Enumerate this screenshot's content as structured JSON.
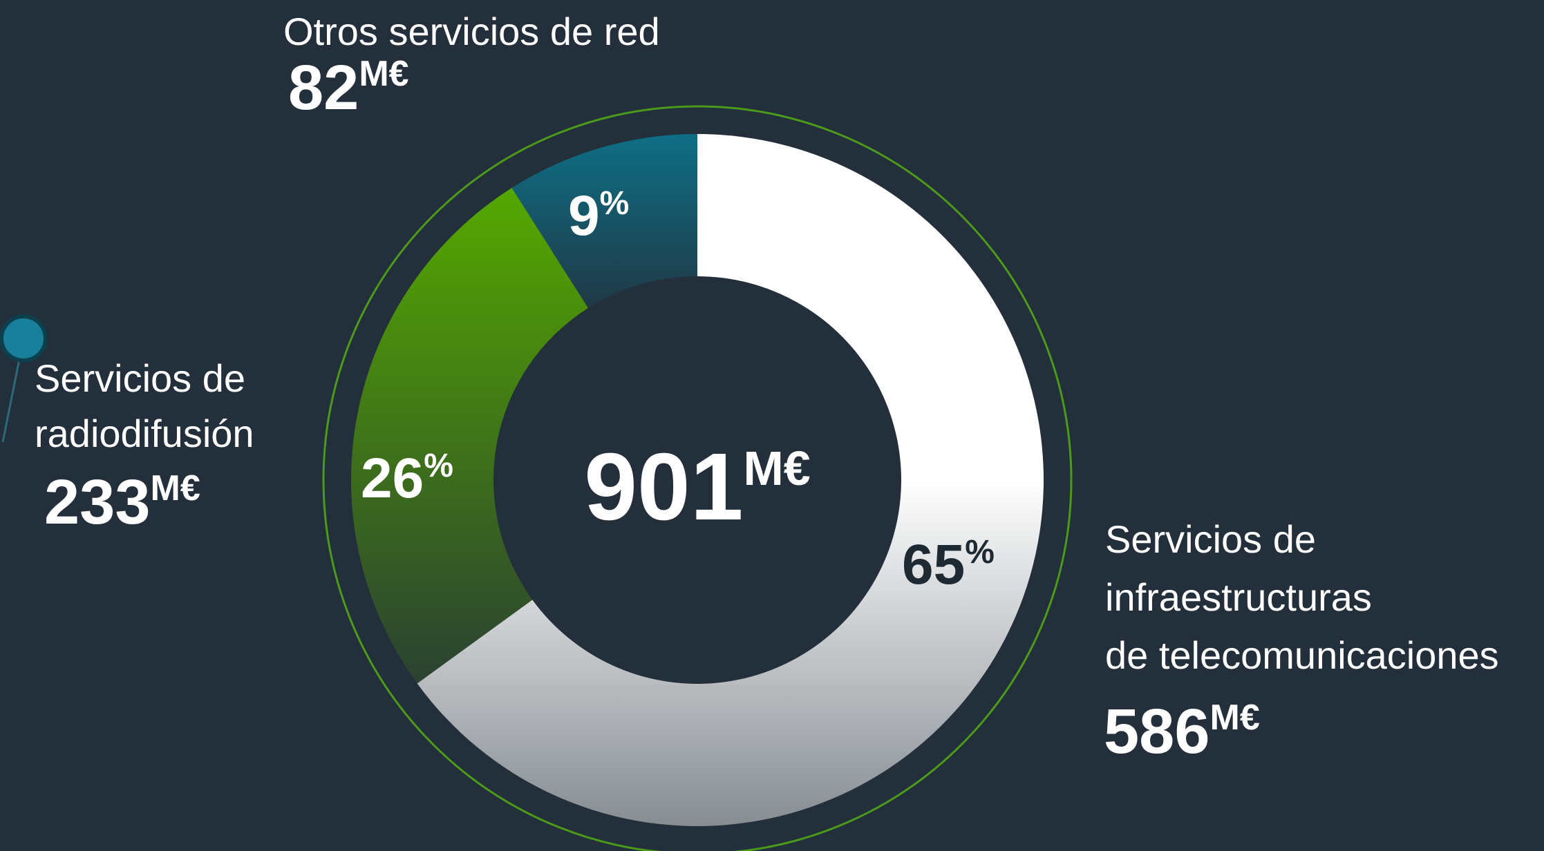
{
  "chart_data": {
    "type": "donut",
    "categories": [
      "Servicios de\ninfraestructuras\nde telecomunicaciones",
      "Servicios de\nradiodifusión",
      "Otros servicios de red"
    ],
    "values": [
      65,
      26,
      9
    ],
    "percent_unit": "%",
    "amounts": [
      586,
      233,
      82
    ],
    "amount_unit": "M€",
    "total": 901,
    "colors": [
      "#ffffff",
      "#55a800",
      "#0e6f86"
    ]
  }
}
